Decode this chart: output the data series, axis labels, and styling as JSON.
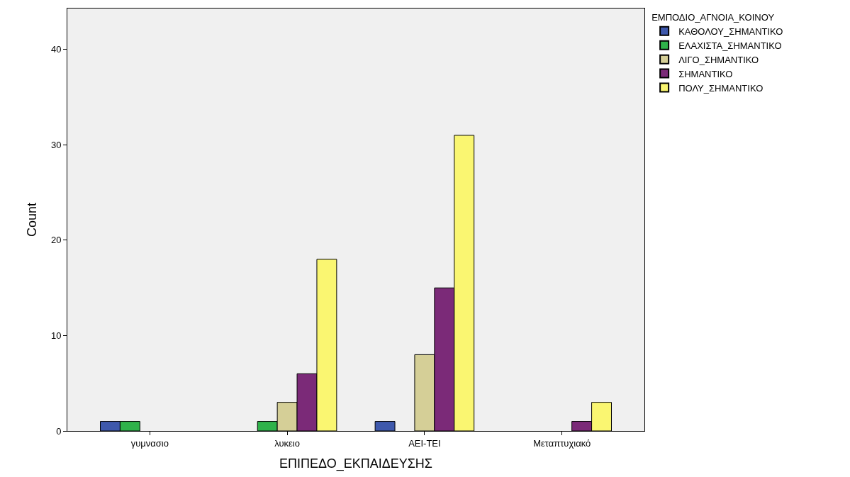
{
  "chart_data": {
    "type": "bar",
    "xlabel": "ΕΠΙΠΕΔΟ_ΕΚΠΑΙΔΕΥΣΗΣ",
    "ylabel": "Count",
    "legend_title": "ΕΜΠΟΔΙΟ_ΑΓΝΟΙΑ_ΚΟΙΝΟΥ",
    "categories": [
      "γυμνασιο",
      "λυκειο",
      "ΑΕΙ-ΤΕΙ",
      "Μεταπτυχιακό"
    ],
    "series": [
      {
        "name": "ΚΑΘΟΛΟΥ_ΣΗΜΑΝΤΙΚΟ",
        "color": "#3e58ac",
        "values": [
          1,
          null,
          1,
          null
        ]
      },
      {
        "name": "ΕΛΑΧΙΣΤΑ_ΣΗΜΑΝΤΙΚΟ",
        "color": "#2fb24a",
        "values": [
          1,
          1,
          null,
          null
        ]
      },
      {
        "name": "ΛΙΓΟ_ΣΗΜΑΝΤΙΚΟ",
        "color": "#d5cf97",
        "values": [
          null,
          3,
          8,
          null
        ]
      },
      {
        "name": "ΣΗΜΑΝΤΙΚΟ",
        "color": "#7b2a78",
        "values": [
          null,
          6,
          15,
          1
        ]
      },
      {
        "name": "ΠΟΛΥ_ΣΗΜΑΝΤΙΚΟ",
        "color": "#faf671",
        "values": [
          null,
          18,
          31,
          3
        ]
      }
    ],
    "ylim": [
      0,
      44.3
    ],
    "yticks": [
      0,
      10,
      20,
      30,
      40
    ],
    "grid": false,
    "legend": "top right"
  }
}
